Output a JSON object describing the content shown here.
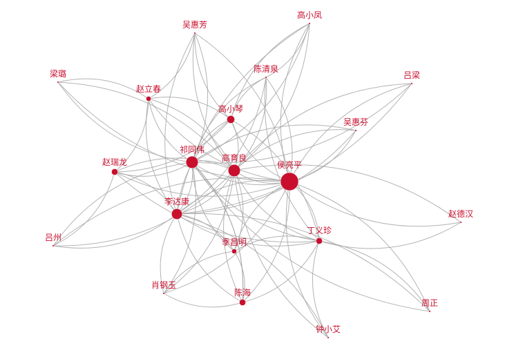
{
  "graph": {
    "node_color": "#c8102e",
    "edge_color": "#a6a6a6",
    "background": "#ffffff",
    "nodes": [
      {
        "id": "houliangping",
        "label": "侯亮平",
        "weight": 10
      },
      {
        "id": "gaoyuliang",
        "label": "高育良",
        "weight": 6
      },
      {
        "id": "qitongwei",
        "label": "祁同伟",
        "weight": 6
      },
      {
        "id": "lidakang",
        "label": "李达康",
        "weight": 5
      },
      {
        "id": "gaoxiaoqin",
        "label": "高小琴",
        "weight": 3
      },
      {
        "id": "zhaoruilong",
        "label": "赵瑞龙",
        "weight": 2
      },
      {
        "id": "zhaolichun",
        "label": "赵立春",
        "weight": 1
      },
      {
        "id": "dingyizhen",
        "label": "丁义珍",
        "weight": 2
      },
      {
        "id": "jichangming",
        "label": "季昌明",
        "weight": 1
      },
      {
        "id": "chenhai",
        "label": "陈海",
        "weight": 2
      },
      {
        "id": "wuhuifang",
        "label": "吴惠芳",
        "weight": 0
      },
      {
        "id": "gaoxiaofeng",
        "label": "高小凤",
        "weight": 0
      },
      {
        "id": "chenqingquan",
        "label": "陈清泉",
        "weight": 0
      },
      {
        "id": "lianglu",
        "label": "梁璐",
        "weight": 0
      },
      {
        "id": "lvliang",
        "label": "吕梁",
        "weight": 0
      },
      {
        "id": "wuhuifen",
        "label": "吴惠芬",
        "weight": 0
      },
      {
        "id": "zhaodehan",
        "label": "赵德汉",
        "weight": 0
      },
      {
        "id": "lvzhou",
        "label": "吕州",
        "weight": 0
      },
      {
        "id": "xiaogangyu",
        "label": "肖钢玉",
        "weight": 0
      },
      {
        "id": "zhouzheng",
        "label": "周正",
        "weight": 0
      },
      {
        "id": "zhongxiaoai",
        "label": "钟小艾",
        "weight": 0
      }
    ],
    "edges": [
      [
        "wuhuifang",
        "gaoyuliang"
      ],
      [
        "wuhuifang",
        "qitongwei"
      ],
      [
        "wuhuifang",
        "gaoxiaoqin"
      ],
      [
        "wuhuifang",
        "houliangping"
      ],
      [
        "wuhuifang",
        "lidakang"
      ],
      [
        "wuhuifang",
        "zhaolichun"
      ],
      [
        "gaoxiaofeng",
        "gaoxiaoqin"
      ],
      [
        "gaoxiaofeng",
        "gaoyuliang"
      ],
      [
        "gaoxiaofeng",
        "houliangping"
      ],
      [
        "gaoxiaofeng",
        "qitongwei"
      ],
      [
        "gaoxiaofeng",
        "lidakang"
      ],
      [
        "gaoxiaofeng",
        "chenqingquan"
      ],
      [
        "chenqingquan",
        "gaoxiaoqin"
      ],
      [
        "chenqingquan",
        "houliangping"
      ],
      [
        "chenqingquan",
        "qitongwei"
      ],
      [
        "chenqingquan",
        "gaoyuliang"
      ],
      [
        "chenqingquan",
        "dingyizhen"
      ],
      [
        "chenqingquan",
        "lidakang"
      ],
      [
        "lianglu",
        "qitongwei"
      ],
      [
        "lianglu",
        "gaoyuliang"
      ],
      [
        "lianglu",
        "houliangping"
      ],
      [
        "lianglu",
        "zhaolichun"
      ],
      [
        "lvliang",
        "houliangping"
      ],
      [
        "lvliang",
        "qitongwei"
      ],
      [
        "lvliang",
        "gaoyuliang"
      ],
      [
        "lvliang",
        "lidakang"
      ],
      [
        "wuhuifen",
        "gaoyuliang"
      ],
      [
        "wuhuifen",
        "houliangping"
      ],
      [
        "wuhuifen",
        "qitongwei"
      ],
      [
        "wuhuifen",
        "lidakang"
      ],
      [
        "zhaolichun",
        "qitongwei"
      ],
      [
        "zhaolichun",
        "gaoyuliang"
      ],
      [
        "zhaolichun",
        "lidakang"
      ],
      [
        "zhaolichun",
        "zhaoruilong"
      ],
      [
        "zhaolichun",
        "houliangping"
      ],
      [
        "zhaolichun",
        "gaoxiaoqin"
      ],
      [
        "gaoxiaoqin",
        "qitongwei"
      ],
      [
        "gaoxiaoqin",
        "gaoyuliang"
      ],
      [
        "gaoxiaoqin",
        "houliangping"
      ],
      [
        "gaoxiaoqin",
        "zhaoruilong"
      ],
      [
        "gaoxiaoqin",
        "lidakang"
      ],
      [
        "gaoxiaoqin",
        "dingyizhen"
      ],
      [
        "zhaoruilong",
        "qitongwei"
      ],
      [
        "zhaoruilong",
        "gaoyuliang"
      ],
      [
        "zhaoruilong",
        "houliangping"
      ],
      [
        "zhaoruilong",
        "lidakang"
      ],
      [
        "zhaoruilong",
        "dingyizhen"
      ],
      [
        "qitongwei",
        "gaoyuliang"
      ],
      [
        "qitongwei",
        "houliangping"
      ],
      [
        "qitongwei",
        "lidakang"
      ],
      [
        "qitongwei",
        "dingyizhen"
      ],
      [
        "qitongwei",
        "chenhai"
      ],
      [
        "qitongwei",
        "jichangming"
      ],
      [
        "qitongwei",
        "xiaogangyu"
      ],
      [
        "gaoyuliang",
        "houliangping"
      ],
      [
        "gaoyuliang",
        "lidakang"
      ],
      [
        "gaoyuliang",
        "dingyizhen"
      ],
      [
        "gaoyuliang",
        "jichangming"
      ],
      [
        "gaoyuliang",
        "chenhai"
      ],
      [
        "gaoyuliang",
        "xiaogangyu"
      ],
      [
        "houliangping",
        "lidakang"
      ],
      [
        "houliangping",
        "dingyizhen"
      ],
      [
        "houliangping",
        "jichangming"
      ],
      [
        "houliangping",
        "chenhai"
      ],
      [
        "houliangping",
        "zhaodehan"
      ],
      [
        "houliangping",
        "zhouzheng"
      ],
      [
        "houliangping",
        "zhongxiaoai"
      ],
      [
        "houliangping",
        "xiaogangyu"
      ],
      [
        "lidakang",
        "dingyizhen"
      ],
      [
        "lidakang",
        "jichangming"
      ],
      [
        "lidakang",
        "chenhai"
      ],
      [
        "lidakang",
        "lvzhou"
      ],
      [
        "lidakang",
        "xiaogangyu"
      ],
      [
        "lidakang",
        "zhouzheng"
      ],
      [
        "lvzhou",
        "gaoyuliang"
      ],
      [
        "lvzhou",
        "qitongwei"
      ],
      [
        "lvzhou",
        "zhaoruilong"
      ],
      [
        "lvzhou",
        "houliangping"
      ],
      [
        "dingyizhen",
        "jichangming"
      ],
      [
        "dingyizhen",
        "chenhai"
      ],
      [
        "dingyizhen",
        "zhaodehan"
      ],
      [
        "dingyizhen",
        "zhouzheng"
      ],
      [
        "dingyizhen",
        "zhongxiaoai"
      ],
      [
        "jichangming",
        "chenhai"
      ],
      [
        "jichangming",
        "xiaogangyu"
      ],
      [
        "chenhai",
        "xiaogangyu"
      ],
      [
        "chenhai",
        "qitongwei"
      ],
      [
        "zhongxiaoai",
        "gaoyuliang"
      ],
      [
        "zhongxiaoai",
        "lidakang"
      ],
      [
        "zhouzheng",
        "qitongwei"
      ],
      [
        "zhaodehan",
        "gaoyuliang"
      ]
    ]
  }
}
